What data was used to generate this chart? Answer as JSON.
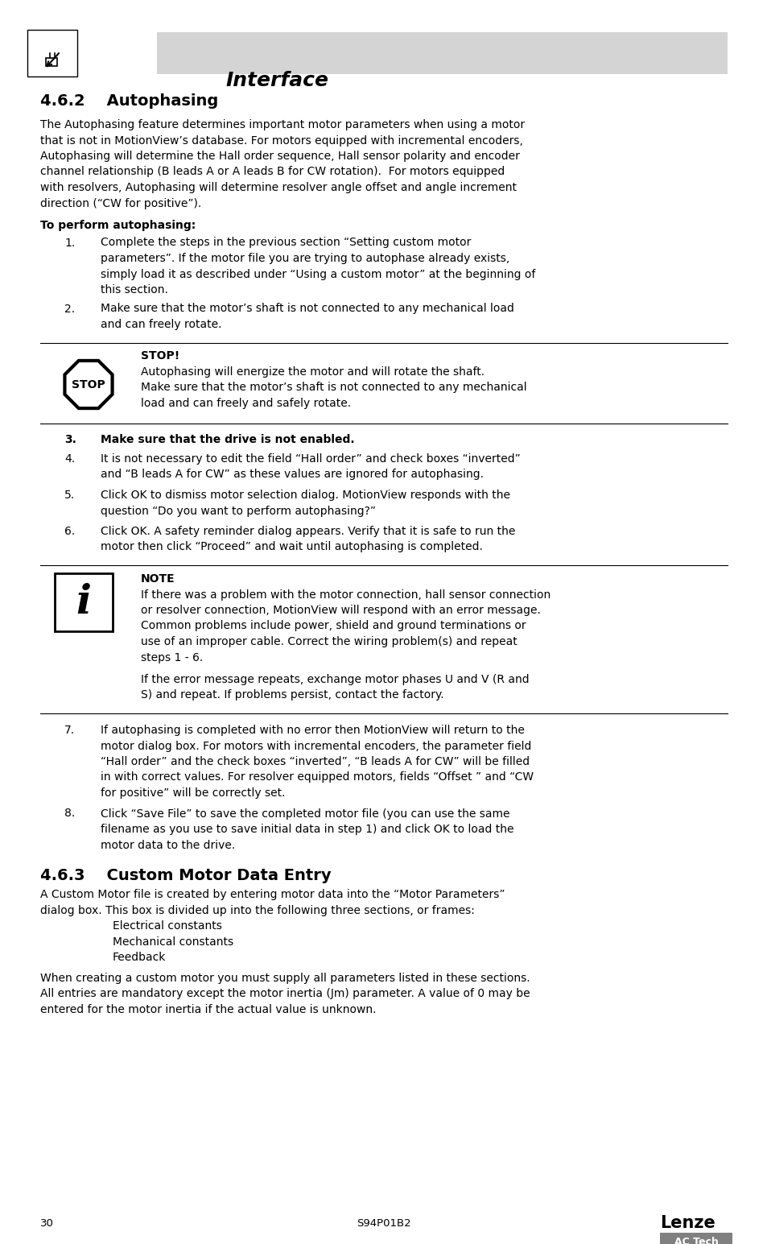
{
  "title": "Interface",
  "header_bg": "#d4d4d4",
  "page_bg": "#ffffff",
  "footer_page": "30",
  "footer_center": "S94P01B2",
  "footer_logo_lenze": "Lenze",
  "footer_logo_actech": "AC Tech",
  "footer_actech_bg": "#808080"
}
